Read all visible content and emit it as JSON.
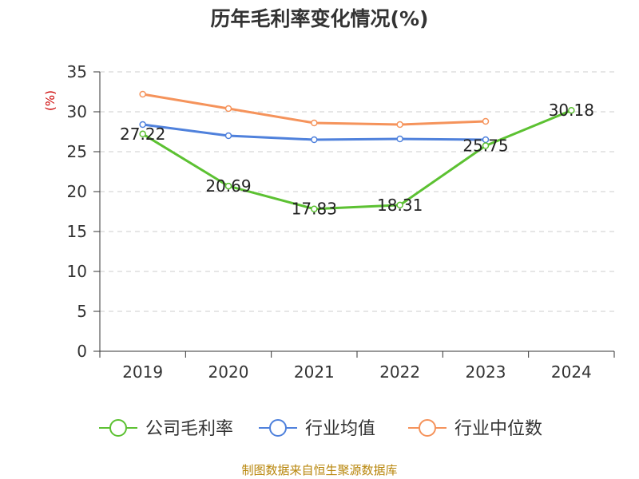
{
  "chart_data": {
    "type": "line",
    "title": "历年毛利率变化情况(%)",
    "ylabel": "(%)",
    "xlabel": "",
    "categories": [
      "2019",
      "2020",
      "2021",
      "2022",
      "2023",
      "2024"
    ],
    "ylim": [
      0,
      35
    ],
    "yticks": [
      0,
      5,
      10,
      15,
      20,
      25,
      30,
      35
    ],
    "grid": "horizontal-dashed",
    "legend_position": "bottom",
    "series": [
      {
        "name": "公司毛利率",
        "color": "#5cc132",
        "values": [
          27.22,
          20.69,
          17.83,
          18.31,
          25.75,
          30.18
        ],
        "data_labels": [
          "27.22",
          "20.69",
          "17.83",
          "18.31",
          "25.75",
          "30.18"
        ]
      },
      {
        "name": "行业均值",
        "color": "#4f81dc",
        "values": [
          28.4,
          27.0,
          26.5,
          26.6,
          26.5,
          null
        ]
      },
      {
        "name": "行业中位数",
        "color": "#f5935b",
        "values": [
          32.2,
          30.4,
          28.6,
          28.4,
          28.8,
          null
        ]
      }
    ]
  },
  "source_text": "制图数据来自恒生聚源数据库"
}
